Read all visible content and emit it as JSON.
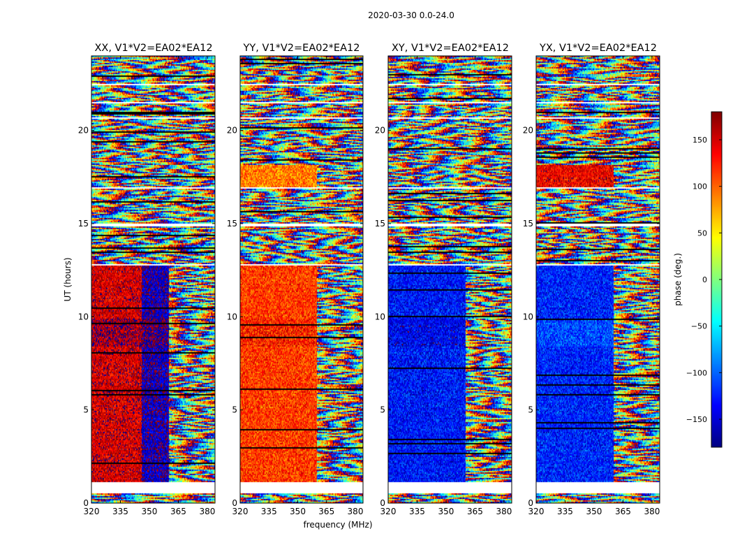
{
  "figure_title": "2020-03-30 0.0-24.0",
  "colors": {
    "map": "jet",
    "background": "#ffffff",
    "axis": "#000000",
    "flagged_rows": "#ffffff",
    "row_borders": "#000000"
  },
  "chart_data": [
    {
      "type": "heatmap",
      "title": "XX, V1*V2=EA02*EA12",
      "xlabel": "",
      "ylabel": "UT (hours)",
      "xlim": [
        320,
        384
      ],
      "ylim": [
        0,
        24
      ],
      "x_ticks": [
        320,
        335,
        350,
        365,
        380
      ],
      "y_ticks": [
        0,
        5,
        10,
        15,
        20
      ],
      "x_breaks_mhz": [
        346,
        360
      ],
      "phase_profile_deg": [
        {
          "ut_start": 1.2,
          "ut_end": 12.8,
          "freq_start": 320,
          "freq_end": 346,
          "phase": 150
        },
        {
          "ut_start": 1.2,
          "ut_end": 12.8,
          "freq_start": 346,
          "freq_end": 360,
          "phase": -160
        },
        {
          "ut_start": 8.4,
          "ut_end": 9.9,
          "freq_start": 320,
          "freq_end": 346,
          "phase": 165
        },
        {
          "ut_start": 8.4,
          "ut_end": 9.9,
          "freq_start": 346,
          "freq_end": 360,
          "phase": -175
        }
      ]
    },
    {
      "type": "heatmap",
      "title": "YY, V1*V2=EA02*EA12",
      "xlabel": "frequency (MHz)",
      "ylabel": "",
      "xlim": [
        320,
        384
      ],
      "ylim": [
        0,
        24
      ],
      "x_ticks": [
        320,
        335,
        350,
        365,
        380
      ],
      "y_ticks": [
        0,
        5,
        10,
        15,
        20
      ],
      "x_breaks_mhz": [
        360
      ],
      "phase_profile_deg": [
        {
          "ut_start": 1.2,
          "ut_end": 12.8,
          "freq_start": 320,
          "freq_end": 360,
          "phase": 115
        },
        {
          "ut_start": 8.4,
          "ut_end": 9.9,
          "freq_start": 320,
          "freq_end": 360,
          "phase": 125
        },
        {
          "ut_start": 17.0,
          "ut_end": 18.2,
          "freq_start": 320,
          "freq_end": 360,
          "phase": 90
        }
      ]
    },
    {
      "type": "heatmap",
      "title": "XY, V1*V2=EA02*EA12",
      "xlabel": "",
      "ylabel": "",
      "xlim": [
        320,
        384
      ],
      "ylim": [
        0,
        24
      ],
      "x_ticks": [
        320,
        335,
        350,
        365,
        380
      ],
      "y_ticks": [
        0,
        5,
        10,
        15,
        20
      ],
      "x_breaks_mhz": [
        360
      ],
      "phase_profile_deg": [
        {
          "ut_start": 1.2,
          "ut_end": 12.8,
          "freq_start": 320,
          "freq_end": 360,
          "phase": -130
        },
        {
          "ut_start": 8.4,
          "ut_end": 9.9,
          "freq_start": 320,
          "freq_end": 360,
          "phase": -140
        }
      ]
    },
    {
      "type": "heatmap",
      "title": "YX, V1*V2=EA02*EA12",
      "xlabel": "",
      "ylabel": "",
      "xlim": [
        320,
        384
      ],
      "ylim": [
        0,
        24
      ],
      "x_ticks": [
        320,
        335,
        350,
        365,
        380
      ],
      "y_ticks": [
        0,
        5,
        10,
        15,
        20
      ],
      "x_breaks_mhz": [
        360
      ],
      "phase_profile_deg": [
        {
          "ut_start": 1.2,
          "ut_end": 12.8,
          "freq_start": 320,
          "freq_end": 360,
          "phase": -125
        },
        {
          "ut_start": 8.4,
          "ut_end": 9.9,
          "freq_start": 320,
          "freq_end": 360,
          "phase": -110
        },
        {
          "ut_start": 17.0,
          "ut_end": 18.2,
          "freq_start": 320,
          "freq_end": 360,
          "phase": 140
        }
      ]
    },
    {
      "type": "colorbar",
      "label": "phase (deg.)",
      "range": [
        -180,
        180
      ],
      "ticks": [
        -150,
        -100,
        -50,
        0,
        50,
        100,
        150
      ],
      "tick_labels": [
        "−150",
        "−100",
        "−50",
        "0",
        "50",
        "100",
        "150"
      ]
    }
  ],
  "flagged_ut_intervals": [
    [
      0.55,
      1.2
    ],
    [
      12.8,
      12.85
    ],
    [
      14.9,
      15.05
    ],
    [
      16.95,
      17.0
    ],
    [
      20.7,
      20.75
    ],
    [
      21.5,
      21.55
    ],
    [
      22.45,
      22.55
    ]
  ]
}
